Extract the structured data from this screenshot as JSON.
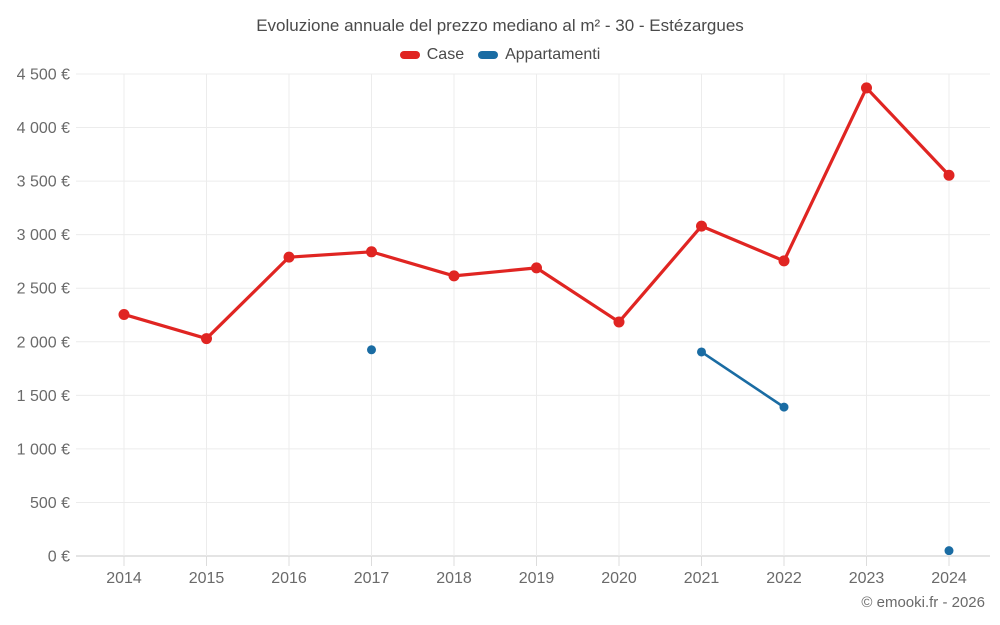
{
  "title": "Evoluzione annuale del prezzo mediano al m² - 30 - Estézargues",
  "legend": {
    "items": [
      {
        "label": "Case",
        "color": "#e02522"
      },
      {
        "label": "Appartamenti",
        "color": "#1a6ca3"
      }
    ]
  },
  "footer": {
    "copyright": "© emooki.fr - 2026"
  },
  "colors": {
    "grid_line": "#ececec",
    "axis_line": "#c8c8c8",
    "tick_mark": "#dcdcdc",
    "tick_text": "#6a6a6a"
  },
  "chart_data": {
    "type": "line",
    "title": "Evoluzione annuale del prezzo mediano al m² - 30 - Estézargues",
    "categories": [
      "2014",
      "2015",
      "2016",
      "2017",
      "2018",
      "2019",
      "2020",
      "2021",
      "2022",
      "2023",
      "2024"
    ],
    "series": [
      {
        "name": "Case",
        "color": "#e02522",
        "values": [
          2255,
          2030,
          2790,
          2840,
          2615,
          2690,
          2185,
          3080,
          2755,
          4370,
          3555
        ]
      },
      {
        "name": "Appartamenti",
        "color": "#1a6ca3",
        "values": [
          null,
          null,
          null,
          1925,
          null,
          null,
          null,
          1905,
          1390,
          null,
          50
        ]
      }
    ],
    "xlabel": "",
    "ylabel": "",
    "ytick_suffix": " €",
    "ylim": [
      0,
      4500
    ],
    "ytick_step": 500,
    "grid": true,
    "legend_position": "top"
  }
}
